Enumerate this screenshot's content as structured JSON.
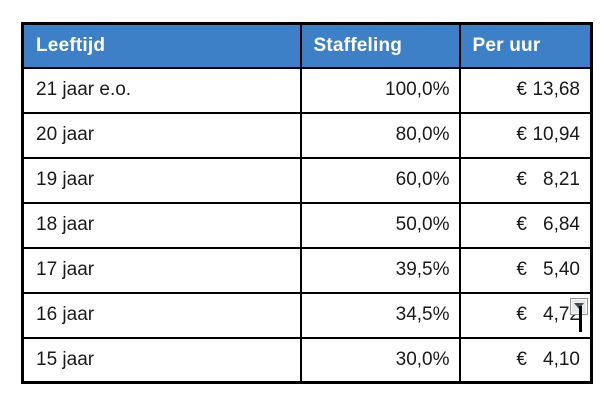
{
  "colors": {
    "header_bg": "#3E80C7",
    "header_text": "#FFFFFF",
    "body_text": "#1A1A1A",
    "border_color": "#000000"
  },
  "table": {
    "headers": [
      "Leeftijd",
      "Staffeling",
      "Per uur"
    ],
    "rows": [
      {
        "leeftijd": "21 jaar e.o.",
        "staffeling": "100,0%",
        "euro": "€",
        "per_uur": "13,68"
      },
      {
        "leeftijd": "20 jaar",
        "staffeling": "80,0%",
        "euro": "€",
        "per_uur": "10,94"
      },
      {
        "leeftijd": "19 jaar",
        "staffeling": "60,0%",
        "euro": "€",
        "per_uur": "8,21"
      },
      {
        "leeftijd": "18 jaar",
        "staffeling": "50,0%",
        "euro": "€",
        "per_uur": "6,84"
      },
      {
        "leeftijd": "17 jaar",
        "staffeling": "39,5%",
        "euro": "€",
        "per_uur": "5,40"
      },
      {
        "leeftijd": "16 jaar",
        "staffeling": "34,5%",
        "euro": "€",
        "per_uur": "4,72"
      },
      {
        "leeftijd": "15 jaar",
        "staffeling": "30,0%",
        "euro": "€",
        "per_uur": "4,10"
      }
    ]
  },
  "overlay": {
    "dropdown_icon": "dropdown-arrow-icon"
  }
}
